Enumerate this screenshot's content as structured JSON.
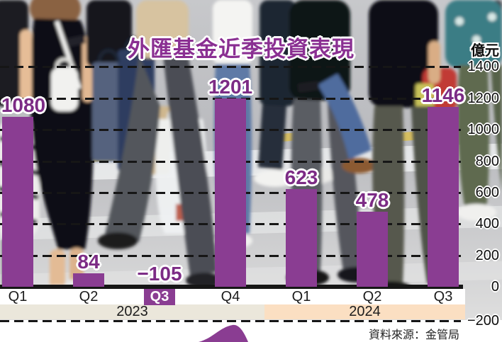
{
  "title": "外匯基金近季投資表現",
  "unit_label": "億元",
  "source": "資料來源：金管局",
  "colors": {
    "bar_color": "#8a3d92",
    "value_color": "#7c2b85",
    "title_color": "#8a2f92",
    "grid_color": "#161616",
    "band_2023": "#ebe7db",
    "band_2024": "#fbdfc2"
  },
  "chart_data": {
    "type": "bar",
    "title": "外匯基金近季投資表現",
    "unit": "億元",
    "categories": [
      "Q1",
      "Q2",
      "Q3",
      "Q4",
      "Q1",
      "Q2",
      "Q3"
    ],
    "values": [
      1080,
      84,
      -105,
      1201,
      623,
      478,
      1146
    ],
    "value_labels": [
      "1080",
      "84",
      "−105",
      "1201",
      "623",
      "478",
      "1146"
    ],
    "year_groups": [
      {
        "label": "2023",
        "quarters": [
          "Q1",
          "Q2",
          "Q3",
          "Q4"
        ]
      },
      {
        "label": "2024",
        "quarters": [
          "Q1",
          "Q2",
          "Q3"
        ]
      }
    ],
    "y_axis": {
      "unit": "億元",
      "ticks": [
        1400,
        1200,
        1000,
        800,
        600,
        400,
        200,
        0,
        -200
      ],
      "tick_labels": [
        "1400",
        "1200",
        "1000",
        "800",
        "600",
        "400",
        "200",
        "0",
        "−200"
      ],
      "ylim": [
        -200,
        1400
      ],
      "gridlines": "dashed",
      "position": "right"
    },
    "source": "資料來源：金管局"
  }
}
